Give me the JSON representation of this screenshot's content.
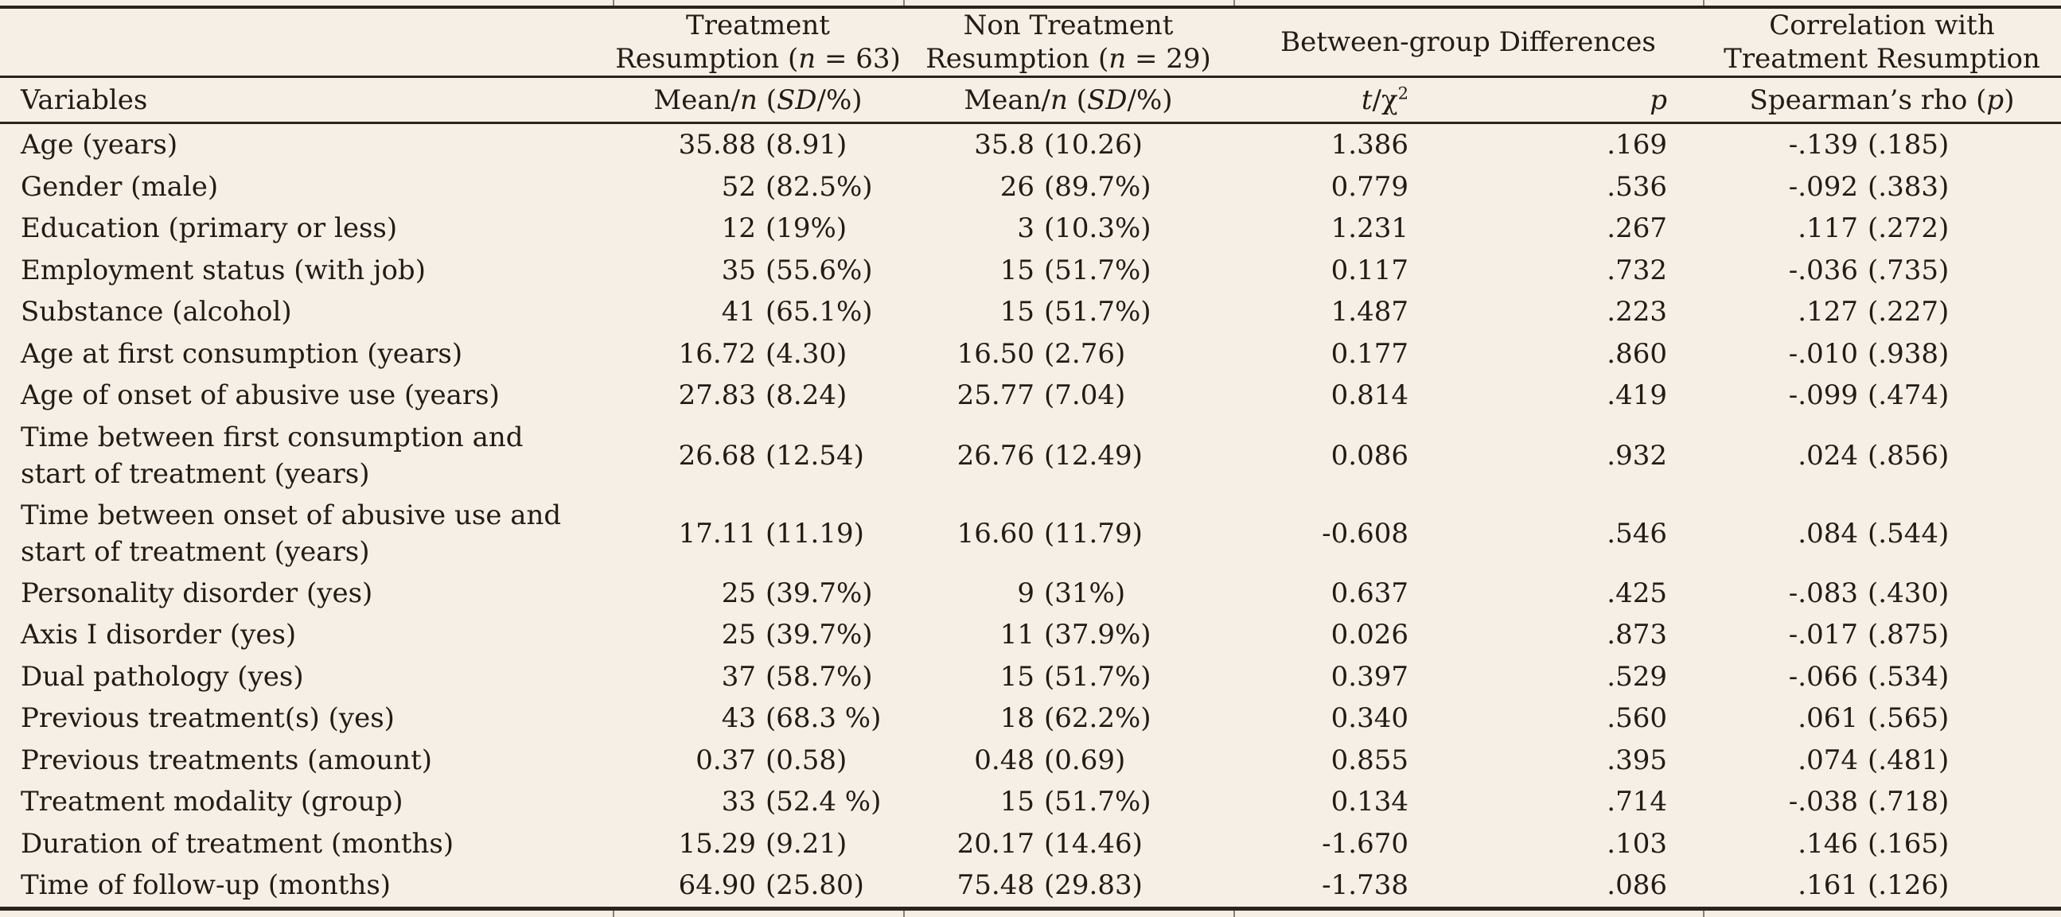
{
  "colors": {
    "background": "#f5efe6",
    "text": "#211c14",
    "rule": "#29241b"
  },
  "table": {
    "groups": {
      "treatment": {
        "line1": [
          {
            "t": "Treatment"
          }
        ],
        "line2": [
          {
            "t": "Resumption ("
          },
          {
            "t": "n",
            "i": true
          },
          {
            "t": " = 63)"
          }
        ]
      },
      "non_treatment": {
        "line1": [
          {
            "t": "Non Treatment"
          }
        ],
        "line2": [
          {
            "t": "Resumption ("
          },
          {
            "t": "n",
            "i": true
          },
          {
            "t": " = 29)"
          }
        ]
      },
      "between": {
        "line1": [
          {
            "t": "Between-group Differences"
          }
        ]
      },
      "correlation": {
        "line1": [
          {
            "t": "Correlation with"
          }
        ],
        "line2": [
          {
            "t": "Treatment Resumption"
          }
        ]
      }
    },
    "cols": {
      "variables": [
        {
          "t": "Variables"
        }
      ],
      "mean1": [
        {
          "t": "Mean/"
        },
        {
          "t": "n",
          "i": true
        },
        {
          "t": " ("
        },
        {
          "t": "SD",
          "i": true
        },
        {
          "t": "/%)"
        }
      ],
      "mean2": [
        {
          "t": "Mean/"
        },
        {
          "t": "n",
          "i": true
        },
        {
          "t": " ("
        },
        {
          "t": "SD",
          "i": true
        },
        {
          "t": "/%)"
        }
      ],
      "t": [
        {
          "t": "t",
          "i": true
        },
        {
          "t": "/χ"
        },
        {
          "t": "2",
          "sup": true
        }
      ],
      "p": [
        {
          "t": "p",
          "i": true
        }
      ],
      "rho": [
        {
          "t": "Spearman’s rho ("
        },
        {
          "t": "p",
          "i": true
        },
        {
          "t": ")"
        }
      ]
    },
    "rows": [
      {
        "label": "Age (years)",
        "m1v": "35.88",
        "m1p": "(8.91)",
        "m2v": "35.8",
        "m2p": "(10.26)",
        "t": "1.386",
        "p": ".169",
        "rv": "-.139",
        "rp": "(.185)"
      },
      {
        "label": "Gender (male)",
        "m1v": "52",
        "m1p": "(82.5%)",
        "m2v": "26",
        "m2p": "(89.7%)",
        "t": "0.779",
        "p": ".536",
        "rv": "-.092",
        "rp": "(.383)"
      },
      {
        "label": "Education (primary or less)",
        "m1v": "12",
        "m1p": "(19%)",
        "m2v": "3",
        "m2p": "(10.3%)",
        "t": "1.231",
        "p": ".267",
        "rv": ".117",
        "rp": "(.272)"
      },
      {
        "label": "Employment status (with job)",
        "m1v": "35",
        "m1p": "(55.6%)",
        "m2v": "15",
        "m2p": "(51.7%)",
        "t": "0.117",
        "p": ".732",
        "rv": "-.036",
        "rp": "(.735)"
      },
      {
        "label": "Substance (alcohol)",
        "m1v": "41",
        "m1p": "(65.1%)",
        "m2v": "15",
        "m2p": "(51.7%)",
        "t": "1.487",
        "p": ".223",
        "rv": ".127",
        "rp": "(.227)"
      },
      {
        "label": "Age at first consumption (years)",
        "m1v": "16.72",
        "m1p": "(4.30)",
        "m2v": "16.50",
        "m2p": "(2.76)",
        "t": "0.177",
        "p": ".860",
        "rv": "-.010",
        "rp": "(.938)"
      },
      {
        "label": "Age of onset of abusive use (years)",
        "m1v": "27.83",
        "m1p": "(8.24)",
        "m2v": "25.77",
        "m2p": "(7.04)",
        "t": "0.814",
        "p": ".419",
        "rv": "-.099",
        "rp": "(.474)"
      },
      {
        "label": "Time between first consumption and start of treatment (years)",
        "m1v": "26.68",
        "m1p": "(12.54)",
        "m2v": "26.76",
        "m2p": "(12.49)",
        "t": "0.086",
        "p": ".932",
        "rv": ".024",
        "rp": "(.856)"
      },
      {
        "label": "Time between onset of abusive use and start of treatment (years)",
        "m1v": "17.11",
        "m1p": "(11.19)",
        "m2v": "16.60",
        "m2p": "(11.79)",
        "t": "-0.608",
        "p": ".546",
        "rv": ".084",
        "rp": "(.544)"
      },
      {
        "label": "Personality disorder (yes)",
        "m1v": "25",
        "m1p": "(39.7%)",
        "m2v": "9",
        "m2p": "(31%)",
        "t": "0.637",
        "p": ".425",
        "rv": "-.083",
        "rp": "(.430)"
      },
      {
        "label": "Axis I disorder (yes)",
        "m1v": "25",
        "m1p": "(39.7%)",
        "m2v": "11",
        "m2p": "(37.9%)",
        "t": "0.026",
        "p": ".873",
        "rv": "-.017",
        "rp": "(.875)"
      },
      {
        "label": "Dual pathology (yes)",
        "m1v": "37",
        "m1p": "(58.7%)",
        "m2v": "15",
        "m2p": "(51.7%)",
        "t": "0.397",
        "p": ".529",
        "rv": "-.066",
        "rp": "(.534)"
      },
      {
        "label": "Previous treatment(s) (yes)",
        "m1v": "43",
        "m1p": "(68.3 %)",
        "m2v": "18",
        "m2p": "(62.2%)",
        "t": "0.340",
        "p": ".560",
        "rv": ".061",
        "rp": "(.565)"
      },
      {
        "label": "Previous treatments (amount)",
        "m1v": "0.37",
        "m1p": "(0.58)",
        "m2v": "0.48",
        "m2p": "(0.69)",
        "t": "0.855",
        "p": ".395",
        "rv": ".074",
        "rp": "(.481)"
      },
      {
        "label": "Treatment modality (group)",
        "m1v": "33",
        "m1p": "(52.4 %)",
        "m2v": "15",
        "m2p": "(51.7%)",
        "t": "0.134",
        "p": ".714",
        "rv": "-.038",
        "rp": "(.718)"
      },
      {
        "label": "Duration of treatment (months)",
        "m1v": "15.29",
        "m1p": "(9.21)",
        "m2v": "20.17",
        "m2p": "(14.46)",
        "t": "-1.670",
        "p": ".103",
        "rv": ".146",
        "rp": "(.165)"
      },
      {
        "label": "Time of follow-up (months)",
        "m1v": "64.90",
        "m1p": "(25.80)",
        "m2v": "75.48",
        "m2p": "(29.83)",
        "t": "-1.738",
        "p": ".086",
        "rv": ".161",
        "rp": "(.126)"
      }
    ]
  }
}
